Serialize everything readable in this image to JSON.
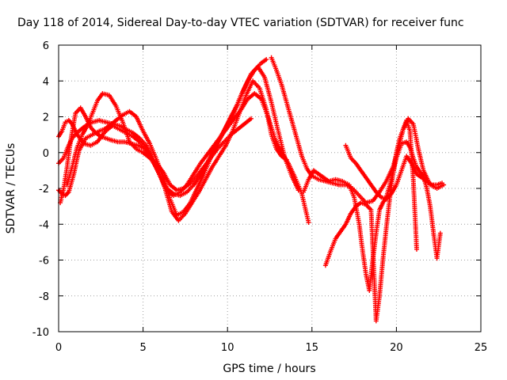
{
  "chart_data": {
    "type": "scatter",
    "title": "Day 118 of 2014, Sidereal Day-to-day VTEC variation (SDTVAR) for receiver func",
    "xlabel": "GPS time / hours",
    "ylabel": "SDTVAR / TECUs",
    "xlim": [
      0,
      25
    ],
    "ylim": [
      -10,
      6
    ],
    "xticks": [
      0,
      5,
      10,
      15,
      20,
      25
    ],
    "yticks": [
      -10,
      -8,
      -6,
      -4,
      -2,
      0,
      2,
      4,
      6
    ],
    "grid": true,
    "marker": "+",
    "color": "#ff0000",
    "series": [
      {
        "x": [
          0.0,
          0.3,
          0.5,
          0.8,
          1.2,
          1.6,
          2.0,
          2.4,
          2.8,
          3.2,
          3.6,
          4.0,
          4.4,
          4.8,
          5.2,
          5.6,
          6.0,
          6.4,
          6.8,
          7.2,
          7.6,
          8.0,
          8.4,
          8.8,
          9.2,
          9.6,
          10.0,
          10.4,
          10.8,
          11.2,
          11.6,
          12.0,
          12.4,
          12.8,
          13.2,
          13.6,
          14.0,
          14.4,
          14.8
        ],
        "y": [
          -0.6,
          -0.3,
          0.2,
          0.8,
          1.2,
          1.5,
          1.7,
          1.8,
          1.7,
          1.6,
          1.5,
          1.3,
          1.1,
          0.8,
          0.4,
          -0.4,
          -1.3,
          -2.1,
          -2.4,
          -2.2,
          -1.8,
          -1.2,
          -0.6,
          -0.1,
          0.4,
          0.9,
          1.4,
          1.9,
          2.4,
          3.0,
          3.3,
          3.0,
          2.0,
          0.8,
          0.0,
          -0.6,
          -1.4,
          -2.3,
          -3.9
        ]
      },
      {
        "x": [
          0.0,
          0.2,
          0.4,
          0.6,
          0.9,
          1.2,
          1.6,
          2.0,
          2.4,
          2.7,
          3.0,
          3.4,
          3.8,
          4.2,
          4.6,
          5.0,
          5.4,
          5.8,
          6.2,
          6.6,
          7.0,
          7.4,
          7.8,
          8.2,
          8.6,
          9.0,
          9.4,
          9.8,
          10.2,
          10.6,
          11.0,
          11.4,
          11.8,
          12.2,
          12.6,
          13.0,
          13.4,
          13.8,
          14.2
        ],
        "y": [
          -2.1,
          -2.3,
          -2.4,
          -2.2,
          -1.2,
          0.1,
          0.8,
          1.0,
          1.2,
          1.3,
          1.5,
          1.8,
          2.1,
          2.3,
          2.0,
          1.2,
          0.5,
          -0.4,
          -1.4,
          -2.6,
          -3.5,
          -3.3,
          -2.8,
          -2.0,
          -1.2,
          -0.3,
          0.5,
          1.2,
          2.0,
          2.7,
          3.6,
          4.4,
          4.8,
          4.2,
          2.8,
          1.2,
          -0.3,
          -1.3,
          -2.1
        ]
      },
      {
        "x": [
          0.0,
          0.2,
          0.4,
          0.6,
          0.8,
          1.1,
          1.5,
          1.9,
          2.3,
          2.6,
          2.9,
          3.2,
          3.6,
          4.0,
          4.4,
          4.8,
          5.2,
          5.6,
          6.0,
          6.4,
          6.8,
          7.2,
          7.6,
          8.0,
          8.4,
          8.8,
          9.2,
          9.6,
          10.0,
          10.4,
          10.8,
          11.2,
          11.6,
          12.0,
          12.3
        ],
        "y": [
          0.9,
          1.2,
          1.7,
          1.8,
          1.6,
          1.0,
          0.5,
          0.4,
          0.6,
          1.0,
          1.3,
          1.5,
          1.3,
          1.1,
          0.9,
          0.6,
          0.2,
          -0.5,
          -1.3,
          -2.0,
          -2.3,
          -2.4,
          -2.2,
          -1.8,
          -1.3,
          -0.6,
          0.2,
          0.9,
          1.6,
          2.3,
          3.2,
          4.0,
          4.6,
          5.0,
          5.2
        ]
      },
      {
        "x": [
          0.1,
          0.3,
          0.5,
          0.7,
          1.0,
          1.3,
          1.6,
          1.9,
          2.2,
          2.5,
          2.8,
          3.1,
          3.5,
          3.9,
          4.3,
          4.7,
          5.1,
          5.5,
          5.9,
          6.3,
          6.7,
          7.1,
          7.5,
          7.9,
          8.3,
          8.7,
          9.1,
          9.5,
          9.9,
          10.3,
          10.7,
          11.1,
          11.5,
          11.9,
          12.3,
          12.6,
          12.9,
          13.2,
          13.5
        ],
        "y": [
          -2.8,
          -2.0,
          -0.8,
          0.6,
          2.2,
          2.5,
          2.0,
          1.4,
          1.1,
          0.9,
          0.8,
          0.7,
          0.6,
          0.6,
          0.5,
          0.4,
          0.2,
          -0.4,
          -1.0,
          -2.0,
          -3.3,
          -3.8,
          -3.4,
          -2.8,
          -2.2,
          -1.5,
          -0.8,
          -0.2,
          0.4,
          1.2,
          2.2,
          3.2,
          4.0,
          3.6,
          2.4,
          1.0,
          0.2,
          -0.2,
          -0.4
        ]
      },
      {
        "x": [
          0.5,
          0.8,
          1.1,
          1.4,
          1.7,
          2.0,
          2.3,
          2.6,
          3.0,
          3.4,
          3.8,
          4.2,
          4.6,
          5.0,
          5.4,
          5.8,
          6.2,
          6.6,
          7.0,
          7.4,
          7.8,
          8.2,
          8.6,
          9.0,
          9.4,
          9.8,
          10.2,
          10.6,
          11.0,
          11.4
        ],
        "y": [
          -1.8,
          -0.8,
          0.3,
          1.0,
          1.5,
          2.2,
          2.9,
          3.3,
          3.2,
          2.6,
          1.7,
          0.6,
          0.2,
          0.0,
          -0.3,
          -0.6,
          -1.1,
          -1.8,
          -2.1,
          -2.0,
          -1.7,
          -1.3,
          -0.8,
          -0.3,
          0.2,
          0.6,
          1.0,
          1.3,
          1.6,
          1.9
        ]
      },
      {
        "x": [
          12.6,
          12.9,
          13.2,
          13.5,
          13.8,
          14.1,
          14.4,
          14.7,
          15.0,
          15.4,
          15.8,
          16.2,
          16.6,
          17.0,
          17.4,
          17.8,
          18.2,
          18.6,
          19.0,
          19.4,
          19.8,
          20.1,
          20.4,
          20.7,
          21.0,
          21.3,
          21.6,
          22.0,
          22.4,
          22.8
        ],
        "y": [
          5.3,
          4.6,
          3.8,
          2.8,
          1.8,
          0.8,
          -0.2,
          -0.9,
          -1.3,
          -1.5,
          -1.6,
          -1.7,
          -1.8,
          -1.8,
          -2.0,
          -2.4,
          -2.8,
          -2.7,
          -2.2,
          -1.6,
          -0.8,
          0.2,
          1.3,
          1.9,
          1.6,
          0.2,
          -1.0,
          -1.8,
          -2.0,
          -1.8
        ]
      },
      {
        "x": [
          14.5,
          14.8,
          15.1,
          15.4,
          15.7,
          16.0,
          16.4,
          16.8,
          17.2,
          17.5,
          17.8,
          18.0,
          18.2,
          18.4,
          18.6,
          18.8,
          19.0,
          19.2,
          19.4,
          19.7,
          20.0,
          20.3,
          20.6,
          20.8,
          21.0,
          21.2,
          21.4,
          21.6,
          21.8,
          22.0,
          22.2,
          22.4,
          22.6
        ],
        "y": [
          -2.2,
          -1.5,
          -1.0,
          -1.2,
          -1.4,
          -1.6,
          -1.5,
          -1.6,
          -1.8,
          -2.5,
          -4.0,
          -5.5,
          -6.8,
          -7.7,
          -6.0,
          -4.5,
          -3.2,
          -2.8,
          -2.5,
          -1.5,
          -0.3,
          0.5,
          0.6,
          0.3,
          -0.3,
          -0.8,
          -1.1,
          -1.3,
          -2.0,
          -3.0,
          -4.5,
          -5.9,
          -4.5
        ]
      },
      {
        "x": [
          15.8,
          16.1,
          16.4,
          16.7,
          17.0,
          17.3,
          17.6,
          17.9,
          18.2,
          18.5,
          18.8,
          19.0,
          19.2,
          19.4,
          19.6,
          19.8,
          20.0,
          20.2,
          20.4,
          20.6,
          20.8,
          21.0,
          21.2
        ],
        "y": [
          -6.3,
          -5.5,
          -4.8,
          -4.4,
          -4.0,
          -3.4,
          -3.0,
          -2.8,
          -2.9,
          -3.2,
          -9.4,
          -8.0,
          -6.0,
          -4.2,
          -2.6,
          -1.2,
          0.0,
          0.8,
          1.3,
          1.8,
          1.2,
          -1.5,
          -5.4
        ]
      },
      {
        "x": [
          17.0,
          17.3,
          17.6,
          17.9,
          18.2,
          18.5,
          18.8,
          19.1,
          19.4,
          19.7,
          20.0,
          20.3,
          20.6,
          20.9,
          21.2,
          21.5,
          21.8,
          22.1,
          22.4,
          22.7
        ],
        "y": [
          0.4,
          -0.3,
          -0.6,
          -1.0,
          -1.4,
          -1.8,
          -2.2,
          -2.5,
          -2.6,
          -2.3,
          -1.8,
          -1.0,
          -0.2,
          -0.6,
          -1.2,
          -1.4,
          -1.6,
          -1.8,
          -1.8,
          -1.7
        ]
      }
    ]
  }
}
